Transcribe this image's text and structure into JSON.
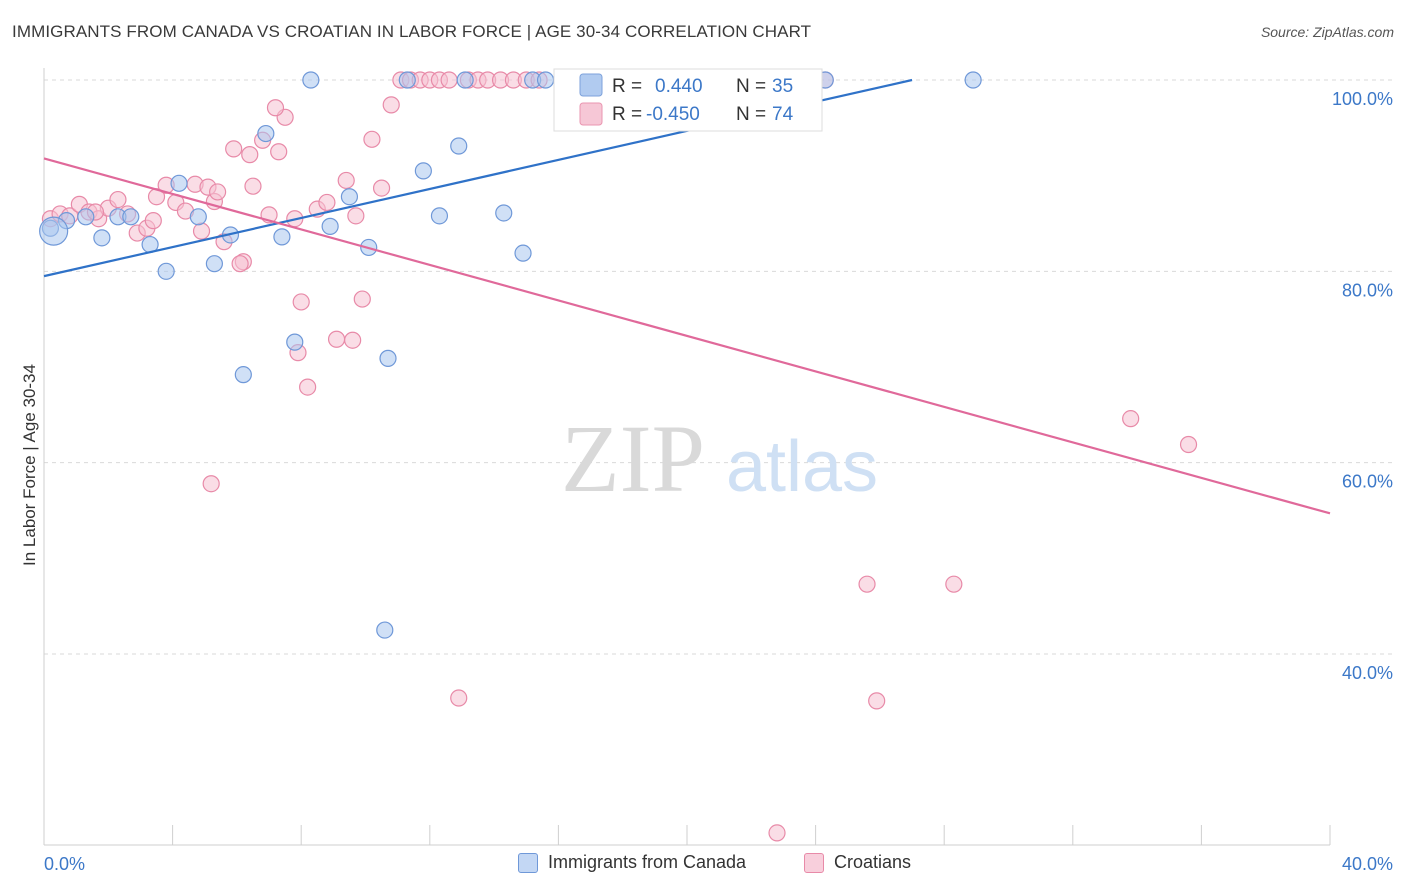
{
  "header": {
    "title": "IMMIGRANTS FROM CANADA VS CROATIAN IN LABOR FORCE | AGE 30-34 CORRELATION CHART",
    "source": "Source: ZipAtlas.com"
  },
  "watermark": {
    "zip": "ZIP",
    "atlas": "atlas"
  },
  "colors": {
    "blue_fill": "#a9c6ef",
    "blue_stroke": "#6f98d8",
    "blue_line": "#2f72c8",
    "pink_fill": "#f6c1d2",
    "pink_stroke": "#e88aa8",
    "pink_line": "#e0699a",
    "axis_text": "#3c78c8",
    "grid": "#d9d9d9"
  },
  "legend_top": {
    "rows": [
      {
        "r_label": "R =",
        "r_value": "0.440",
        "n_label": "N =",
        "n_value": "35"
      },
      {
        "r_label": "R =",
        "r_value": "-0.450",
        "n_label": "N =",
        "n_value": "74"
      }
    ]
  },
  "legend_bottom": {
    "items": [
      {
        "label": "Immigrants from Canada"
      },
      {
        "label": "Croatians"
      }
    ]
  },
  "chart_data": {
    "type": "scatter",
    "title": "IMMIGRANTS FROM CANADA VS CROATIAN IN LABOR FORCE | AGE 30-34 CORRELATION CHART",
    "xlabel": "",
    "ylabel": "In Labor Force | Age 30-34",
    "xlim": [
      0,
      40
    ],
    "ylim": [
      20,
      101
    ],
    "x_tick_labels": [
      "0.0%",
      "40.0%"
    ],
    "y_ticks": [
      40,
      60,
      80,
      100
    ],
    "y_tick_labels": [
      "40.0%",
      "60.0%",
      "80.0%",
      "100.0%"
    ],
    "grid": true,
    "legend_placement": "top-center",
    "series": [
      {
        "name": "Immigrants from Canada",
        "r": 0.44,
        "n": 35,
        "trend": {
          "x": [
            0,
            27
          ],
          "y": [
            79.5,
            100
          ]
        },
        "points": [
          [
            0.2,
            84.5
          ],
          [
            0.7,
            85.3
          ],
          [
            1.3,
            85.7
          ],
          [
            1.8,
            83.5
          ],
          [
            2.3,
            85.7
          ],
          [
            2.7,
            85.7
          ],
          [
            3.3,
            82.8
          ],
          [
            3.8,
            80.0
          ],
          [
            4.2,
            89.2
          ],
          [
            4.8,
            85.7
          ],
          [
            5.3,
            80.8
          ],
          [
            5.8,
            83.8
          ],
          [
            6.2,
            69.2
          ],
          [
            6.9,
            94.4
          ],
          [
            7.4,
            83.6
          ],
          [
            7.8,
            72.6
          ],
          [
            8.3,
            100
          ],
          [
            8.9,
            84.7
          ],
          [
            9.5,
            87.8
          ],
          [
            10.1,
            82.5
          ],
          [
            10.6,
            42.5
          ],
          [
            10.7,
            70.9
          ],
          [
            11.3,
            100
          ],
          [
            11.8,
            90.5
          ],
          [
            12.3,
            85.8
          ],
          [
            12.9,
            93.1
          ],
          [
            13.1,
            100
          ],
          [
            14.3,
            86.1
          ],
          [
            14.9,
            81.9
          ],
          [
            15.2,
            100
          ],
          [
            15.6,
            100
          ],
          [
            21.2,
            100
          ],
          [
            24.3,
            100
          ],
          [
            28.9,
            100
          ],
          [
            0.3,
            84.2
          ]
        ]
      },
      {
        "name": "Croatians",
        "r": -0.45,
        "n": 74,
        "trend": {
          "x": [
            0,
            40
          ],
          "y": [
            91.8,
            54.7
          ]
        },
        "points": [
          [
            0.2,
            85.5
          ],
          [
            0.5,
            86.0
          ],
          [
            0.8,
            85.8
          ],
          [
            1.1,
            87.0
          ],
          [
            1.4,
            86.2
          ],
          [
            1.7,
            85.5
          ],
          [
            2.0,
            86.6
          ],
          [
            2.3,
            87.5
          ],
          [
            2.6,
            86.0
          ],
          [
            2.9,
            84.0
          ],
          [
            3.2,
            84.5
          ],
          [
            3.5,
            87.8
          ],
          [
            3.8,
            89.0
          ],
          [
            4.1,
            87.2
          ],
          [
            4.4,
            86.3
          ],
          [
            4.7,
            89.1
          ],
          [
            4.9,
            84.2
          ],
          [
            5.1,
            88.8
          ],
          [
            5.3,
            87.3
          ],
          [
            5.6,
            83.1
          ],
          [
            5.9,
            92.8
          ],
          [
            6.2,
            81.0
          ],
          [
            6.5,
            88.9
          ],
          [
            6.8,
            93.7
          ],
          [
            7.0,
            85.9
          ],
          [
            7.3,
            92.5
          ],
          [
            7.5,
            96.1
          ],
          [
            7.8,
            85.5
          ],
          [
            8.0,
            76.8
          ],
          [
            8.2,
            67.9
          ],
          [
            8.5,
            86.5
          ],
          [
            8.8,
            87.2
          ],
          [
            9.1,
            72.9
          ],
          [
            9.4,
            89.5
          ],
          [
            9.7,
            85.8
          ],
          [
            9.9,
            77.1
          ],
          [
            10.2,
            93.8
          ],
          [
            10.5,
            88.7
          ],
          [
            10.8,
            97.4
          ],
          [
            11.1,
            100
          ],
          [
            11.4,
            100
          ],
          [
            11.7,
            100
          ],
          [
            12.0,
            100
          ],
          [
            12.3,
            100
          ],
          [
            12.6,
            100
          ],
          [
            12.9,
            35.4
          ],
          [
            13.2,
            100
          ],
          [
            13.5,
            100
          ],
          [
            13.8,
            100
          ],
          [
            14.2,
            100
          ],
          [
            14.6,
            100
          ],
          [
            15.0,
            100
          ],
          [
            15.4,
            100
          ],
          [
            16.2,
            100
          ],
          [
            17.2,
            100
          ],
          [
            18.4,
            100
          ],
          [
            19.6,
            100
          ],
          [
            20.3,
            100
          ],
          [
            22.8,
            21.3
          ],
          [
            24.3,
            100
          ],
          [
            25.6,
            47.3
          ],
          [
            25.9,
            35.1
          ],
          [
            28.3,
            47.3
          ],
          [
            33.8,
            64.6
          ],
          [
            35.6,
            61.9
          ],
          [
            5.2,
            57.8
          ],
          [
            5.4,
            88.3
          ],
          [
            6.1,
            80.8
          ],
          [
            7.2,
            97.1
          ],
          [
            6.4,
            92.2
          ],
          [
            7.9,
            71.5
          ],
          [
            9.6,
            72.8
          ],
          [
            3.4,
            85.3
          ],
          [
            1.6,
            86.2
          ]
        ]
      }
    ]
  }
}
